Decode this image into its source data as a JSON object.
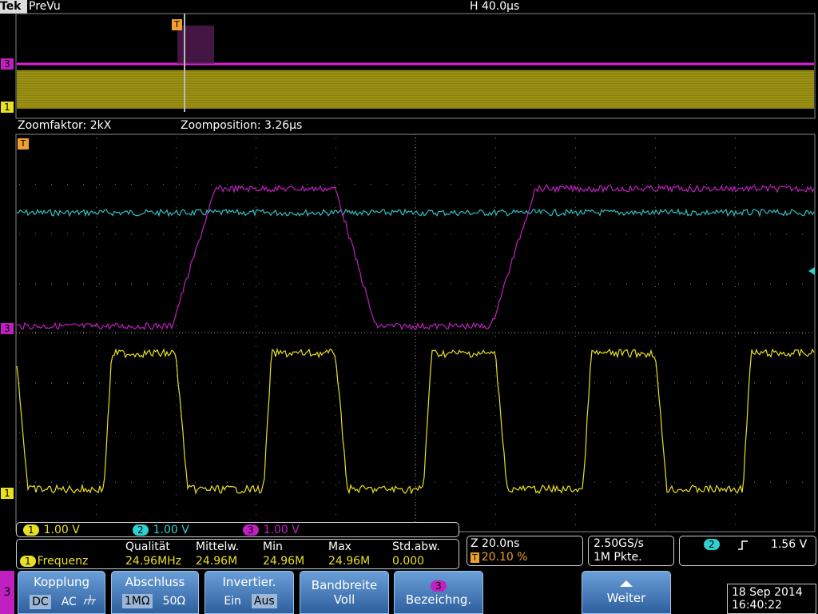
{
  "header": {
    "brand": "Tek",
    "mode": "PreVu",
    "timebase": "H 40.0µs"
  },
  "overview": {
    "ch3_marker": "3",
    "ch1_marker": "1",
    "trigger_marker": "T"
  },
  "zoom": {
    "factor": "Zoomfaktor: 2kX",
    "position": "Zoomposition: 3.26µs"
  },
  "main": {
    "trigger_marker": "T",
    "ch3_marker": "3",
    "ch1_marker": "1"
  },
  "channels": [
    {
      "id": "1",
      "scale": "1.00 V"
    },
    {
      "id": "2",
      "scale": "1.00 V"
    },
    {
      "id": "3",
      "scale": "1.00 V"
    }
  ],
  "measurement": {
    "headers": [
      "Qualität",
      "Mittelw.",
      "Min",
      "Max",
      "Std.abw."
    ],
    "source": "1",
    "name": "Frequenz",
    "values": [
      "24.96MHz",
      "24.96M",
      "24.96M",
      "24.96M",
      "0.000"
    ]
  },
  "zoom_info": {
    "scale": "Z 20.0ns",
    "trigger_marker": "T",
    "trigger_pos": "20.10 %"
  },
  "acquisition": {
    "rate": "2.50GS/s",
    "length": "1M Pkte."
  },
  "trigger": {
    "source": "2",
    "level": "1.56 V"
  },
  "menu": {
    "side": "3",
    "buttons": [
      {
        "title": "Kopplung",
        "options": [
          "DC",
          "AC"
        ]
      },
      {
        "title": "Abschluss",
        "options": [
          "1MΩ",
          "50Ω"
        ]
      },
      {
        "title": "Invertier.",
        "options": [
          "Ein",
          "Aus"
        ]
      },
      {
        "title": "Bandbreite",
        "options": [
          "Voll"
        ]
      },
      {
        "badge": "3",
        "title": "Bezeichng."
      },
      {
        "title": "Weiter"
      }
    ]
  },
  "datetime": {
    "date": "18 Sep 2014",
    "time": "16:40:22"
  }
}
